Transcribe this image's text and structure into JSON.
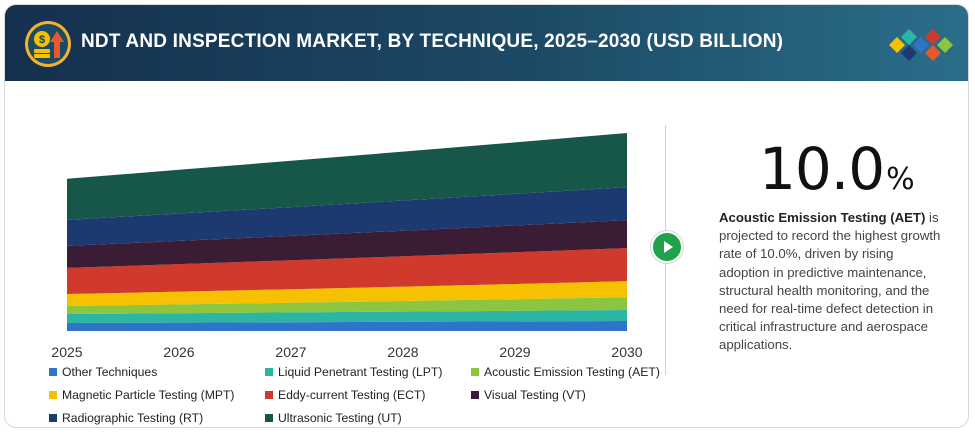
{
  "header": {
    "title": "NDT AND INSPECTION MARKET, BY TECHNIQUE, 2025–2030 (USD BILLION)"
  },
  "chart_data": {
    "type": "area",
    "stacked": true,
    "x": [
      "2025",
      "2026",
      "2027",
      "2028",
      "2029",
      "2030"
    ],
    "grid": false,
    "legend_position": "bottom",
    "series": [
      {
        "name": "Other Techniques",
        "color": "#2e75c9",
        "values": [
          0.4,
          0.42,
          0.44,
          0.46,
          0.48,
          0.5
        ]
      },
      {
        "name": "Liquid Penetrant Testing (LPT)",
        "color": "#2bb5a3",
        "values": [
          0.45,
          0.47,
          0.49,
          0.51,
          0.53,
          0.55
        ]
      },
      {
        "name": "Acoustic Emission Testing (AET)",
        "color": "#8cc540",
        "values": [
          0.4,
          0.44,
          0.48,
          0.53,
          0.58,
          0.64
        ]
      },
      {
        "name": "Magnetic Particle Testing (MPT)",
        "color": "#f6c100",
        "values": [
          0.6,
          0.64,
          0.68,
          0.72,
          0.76,
          0.8
        ]
      },
      {
        "name": "Eddy-current Testing (ECT)",
        "color": "#cf3a2c",
        "values": [
          1.3,
          1.37,
          1.44,
          1.51,
          1.58,
          1.65
        ]
      },
      {
        "name": "Visual Testing (VT)",
        "color": "#3a1d35",
        "values": [
          1.1,
          1.16,
          1.22,
          1.28,
          1.34,
          1.4
        ]
      },
      {
        "name": "Radiographic Testing (RT)",
        "color": "#1c3a70",
        "values": [
          1.3,
          1.37,
          1.44,
          1.51,
          1.58,
          1.65
        ]
      },
      {
        "name": "Ultrasonic Testing (UT)",
        "color": "#17574a",
        "values": [
          2.05,
          2.18,
          2.31,
          2.44,
          2.57,
          2.7
        ]
      }
    ]
  },
  "highlight": {
    "rate_value": "10.0",
    "rate_unit": "%",
    "segment_name": "Acoustic Emission Testing (AET)",
    "description": " is projected to record the highest growth rate of 10.0%, driven by rising adoption in predictive maintenance, structural health monitoring, and the need for real-time defect detection in critical infrastructure and aerospace applications."
  },
  "colors": {
    "header_start": "#15304e",
    "header_end": "#2b6e8a",
    "play_button": "#1fa34a"
  },
  "icons": {
    "header": "money-growth-icon",
    "logo": "diamond-cluster-logo",
    "play": "play-icon"
  }
}
